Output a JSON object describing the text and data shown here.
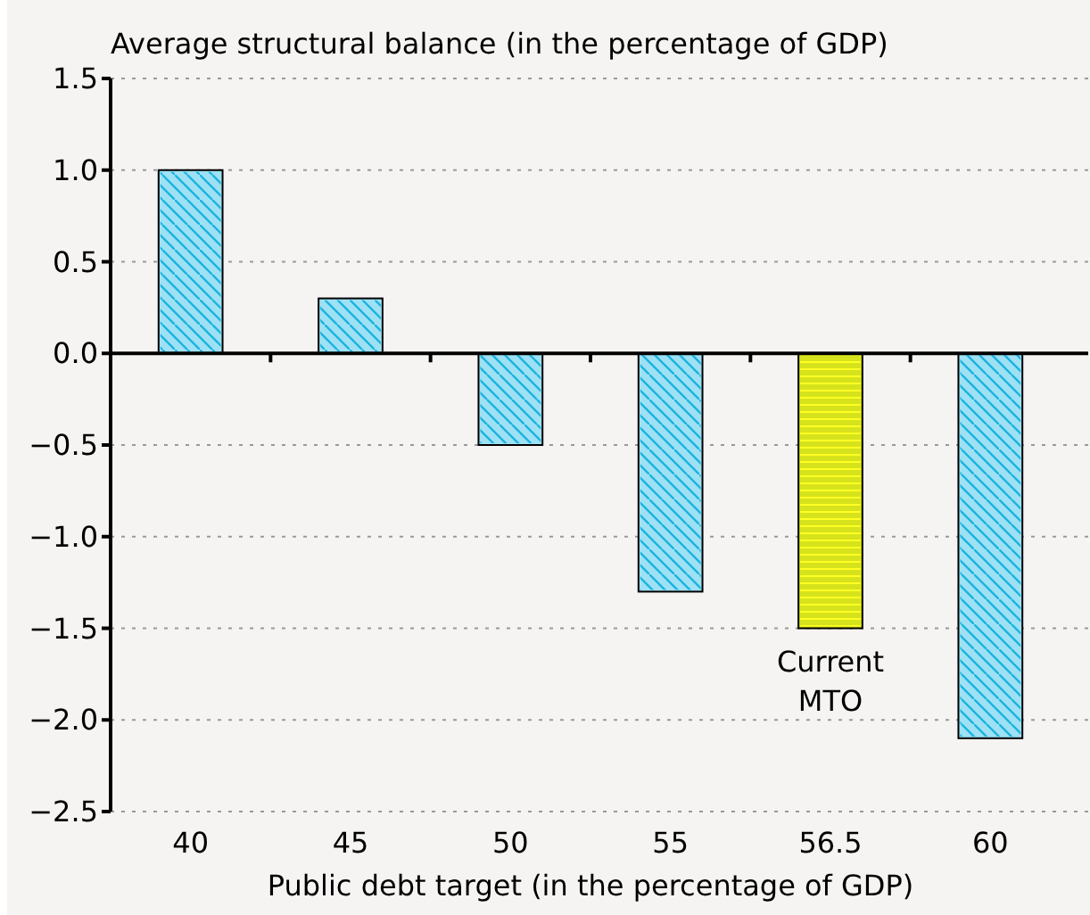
{
  "chart_data": {
    "type": "bar",
    "ylabel": "Average structural balance (in the percentage of GDP)",
    "xlabel": "Public debt target (in the percentage of GDP)",
    "categories": [
      "40",
      "45",
      "50",
      "55",
      "56.5",
      "60"
    ],
    "values": [
      1.0,
      0.3,
      -0.5,
      -1.3,
      -1.5,
      -2.1
    ],
    "colors": [
      "#9ee1f4",
      "#9ee1f4",
      "#9ee1f4",
      "#9ee1f4",
      "#d6e31c",
      "#9ee1f4"
    ],
    "ylim": [
      -2.5,
      1.5
    ],
    "yticks": [
      {
        "value": -2.5,
        "label": "−2.5"
      },
      {
        "value": -2.0,
        "label": "−2.0"
      },
      {
        "value": -1.5,
        "label": "−1.5"
      },
      {
        "value": -1.0,
        "label": "−1.0"
      },
      {
        "value": -0.5,
        "label": "−0.5"
      },
      {
        "value": 0,
        "label": "0.0"
      },
      {
        "value": 0.5,
        "label": "0.5"
      },
      {
        "value": 1.0,
        "label": "1.0"
      },
      {
        "value": 1.5,
        "label": "1.5"
      }
    ],
    "grid": "y",
    "annotations": [
      {
        "text": "Current MTO",
        "x": "56.5",
        "y": -1.5
      }
    ]
  }
}
